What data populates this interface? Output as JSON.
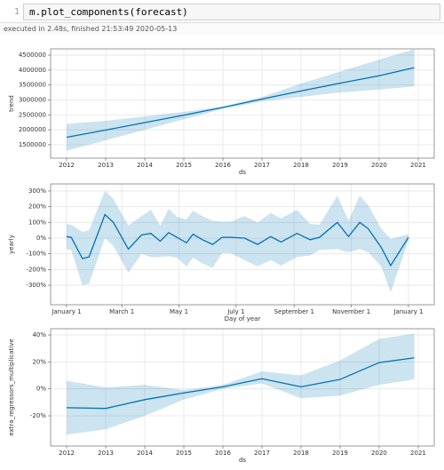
{
  "cell": {
    "line_number": 1,
    "code": "m.plot_components(forecast)",
    "output_info": "executed in 2.48s, finished 21:53:49 2020-05-13"
  },
  "chart_data": [
    {
      "type": "line",
      "ylabel": "trend",
      "xlabel": "ds",
      "color": "#0072b2",
      "grid": true,
      "x": [
        2012,
        2013,
        2014,
        2015,
        2016,
        2017,
        2018,
        2019,
        2020,
        2020.9
      ],
      "values": [
        1750000,
        1990000,
        2240000,
        2490000,
        2750000,
        3030000,
        3300000,
        3560000,
        3810000,
        4080000
      ],
      "upper": [
        2200000,
        2300000,
        2450000,
        2600000,
        2780000,
        3100000,
        3550000,
        3950000,
        4350000,
        4700000
      ],
      "lower": [
        1300000,
        1650000,
        2000000,
        2350000,
        2700000,
        2950000,
        3100000,
        3250000,
        3350000,
        3450000
      ],
      "xlim": [
        2011.59,
        2021.41
      ],
      "xticks": [
        2012,
        2013,
        2014,
        2015,
        2016,
        2017,
        2018,
        2019,
        2020,
        2021
      ],
      "ylim": [
        1050000,
        4710000
      ],
      "yticks": [
        1500000,
        2000000,
        2500000,
        3000000,
        3500000,
        4000000,
        4500000
      ]
    },
    {
      "type": "line",
      "ylabel": "yearly",
      "xlabel": "Day of year",
      "color": "#0072b2",
      "grid": true,
      "x": [
        0,
        5,
        17,
        24,
        41,
        50,
        66,
        80,
        90,
        100,
        109,
        118,
        128,
        135,
        145,
        156,
        166,
        175,
        190,
        204,
        218,
        229,
        246,
        260,
        270,
        289,
        301,
        313,
        322,
        336,
        346,
        365
      ],
      "values": [
        10,
        5,
        -130,
        -120,
        150,
        100,
        -70,
        20,
        30,
        -20,
        35,
        5,
        -30,
        25,
        -10,
        -40,
        5,
        5,
        0,
        -40,
        10,
        -25,
        30,
        -10,
        5,
        100,
        10,
        100,
        60,
        -60,
        -175,
        5
      ],
      "upper": [
        90,
        85,
        40,
        50,
        300,
        250,
        80,
        140,
        180,
        80,
        185,
        135,
        120,
        175,
        140,
        110,
        105,
        105,
        140,
        100,
        160,
        125,
        180,
        90,
        85,
        270,
        110,
        270,
        210,
        60,
        -5,
        25
      ],
      "lower": [
        -70,
        -75,
        -300,
        -290,
        0,
        -50,
        -220,
        -100,
        -120,
        -120,
        -115,
        -125,
        -180,
        -125,
        -160,
        -190,
        -95,
        -95,
        -140,
        -180,
        -140,
        -175,
        -120,
        -110,
        -75,
        -70,
        -90,
        -70,
        -90,
        -180,
        -345,
        -15
      ],
      "xlim": [
        -17,
        392.5
      ],
      "xticks": [
        {
          "value": 0,
          "label": "January 1"
        },
        {
          "value": 59,
          "label": "March 1"
        },
        {
          "value": 120,
          "label": "May 1"
        },
        {
          "value": 181,
          "label": "July 1"
        },
        {
          "value": 243,
          "label": "September 1"
        },
        {
          "value": 304,
          "label": "November 1"
        },
        {
          "value": 365,
          "label": "January 1"
        }
      ],
      "ylim": [
        -424,
        345
      ],
      "yticks": [
        {
          "value": -300,
          "label": "-300%"
        },
        {
          "value": -200,
          "label": "-200%"
        },
        {
          "value": -100,
          "label": "-100%"
        },
        {
          "value": 0,
          "label": "0%"
        },
        {
          "value": 100,
          "label": "100%"
        },
        {
          "value": 200,
          "label": "200%"
        },
        {
          "value": 300,
          "label": "300%"
        }
      ]
    },
    {
      "type": "line",
      "ylabel": "extra_regressors_multiplicative",
      "xlabel": "ds",
      "color": "#0072b2",
      "grid": true,
      "x": [
        2012,
        2013,
        2014,
        2015,
        2016,
        2017,
        2018,
        2019,
        2020,
        2020.9
      ],
      "values": [
        -14,
        -14.5,
        -8,
        -3,
        1.5,
        7.5,
        1.5,
        7,
        19.5,
        23
      ],
      "upper": [
        6,
        1,
        3,
        -1,
        3,
        13,
        10,
        21,
        37,
        41
      ],
      "lower": [
        -34,
        -30,
        -20,
        -8,
        0,
        4,
        -7,
        -5,
        3,
        7
      ],
      "xlim": [
        2011.59,
        2021.41
      ],
      "xticks": [
        2012,
        2013,
        2014,
        2015,
        2016,
        2017,
        2018,
        2019,
        2020,
        2021
      ],
      "ylim": [
        -42.4,
        44.6
      ],
      "yticks": [
        {
          "value": -20,
          "label": "-20%"
        },
        {
          "value": 0,
          "label": "0%"
        },
        {
          "value": 20,
          "label": "20%"
        },
        {
          "value": 40,
          "label": "40%"
        }
      ]
    }
  ]
}
